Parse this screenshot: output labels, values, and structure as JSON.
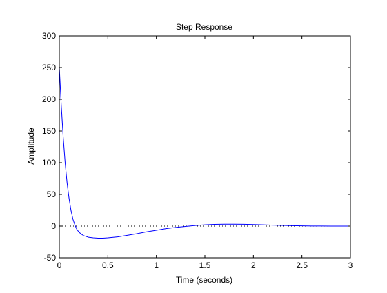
{
  "chart_data": {
    "type": "line",
    "title": "Step Response",
    "xlabel": "Time (seconds)",
    "ylabel": "Amplitude",
    "xlim": [
      0,
      3
    ],
    "ylim": [
      -50,
      300
    ],
    "x_ticks": [
      0,
      0.5,
      1,
      1.5,
      2,
      2.5,
      3
    ],
    "x_tick_labels": [
      "0",
      "0.5",
      "1",
      "1.5",
      "2",
      "2.5",
      "3"
    ],
    "y_ticks": [
      -50,
      0,
      50,
      100,
      150,
      200,
      250,
      300
    ],
    "y_tick_labels": [
      "-50",
      "0",
      "50",
      "100",
      "150",
      "200",
      "250",
      "300"
    ],
    "grid": false,
    "reference_line": {
      "y": 0,
      "style": "dotted",
      "color": "#000000"
    },
    "series": [
      {
        "color": "#0000ff",
        "x": [
          0,
          0.02,
          0.04,
          0.06,
          0.08,
          0.1,
          0.12,
          0.14,
          0.16,
          0.18,
          0.2,
          0.22,
          0.25,
          0.3,
          0.35,
          0.4,
          0.45,
          0.5,
          0.6,
          0.7,
          0.8,
          0.9,
          1.0,
          1.1,
          1.2,
          1.3,
          1.4,
          1.5,
          1.6,
          1.7,
          1.8,
          1.9,
          2.0,
          2.1,
          2.2,
          2.3,
          2.4,
          2.5,
          2.6,
          2.7,
          2.8,
          2.9,
          3.0
        ],
        "y": [
          250,
          190,
          140,
          100,
          68,
          44,
          25,
          11,
          2,
          -5,
          -9,
          -12,
          -15,
          -17.5,
          -18.5,
          -19,
          -19,
          -18.5,
          -17,
          -14.5,
          -12,
          -9,
          -6.5,
          -4,
          -2,
          -0.5,
          1,
          2,
          2.7,
          3,
          3,
          2.8,
          2.4,
          2,
          1.5,
          1.1,
          0.7,
          0.4,
          0.2,
          0.1,
          0,
          0,
          0
        ]
      }
    ]
  }
}
